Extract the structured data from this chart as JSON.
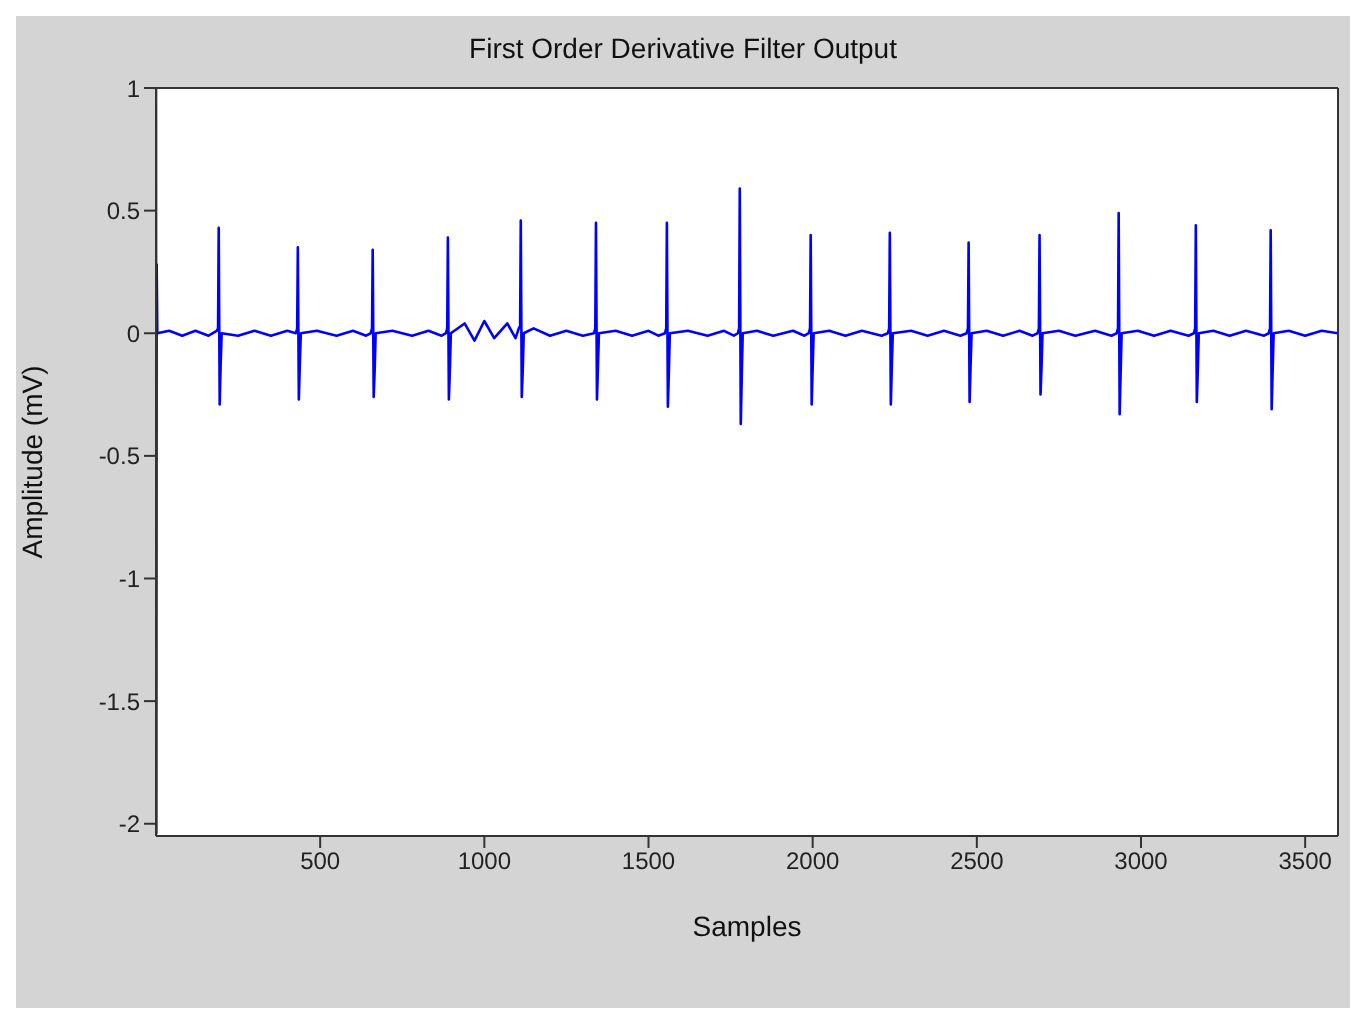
{
  "chart_data": {
    "type": "line",
    "title": "First Order Derivative Filter Output",
    "xlabel": "Samples",
    "ylabel": "Amplitude (mV)",
    "xlim": [
      0,
      3600
    ],
    "xticks": [
      500,
      1000,
      1500,
      2000,
      2500,
      3000,
      3500
    ],
    "ylim": [
      -2.05,
      1
    ],
    "yticks": [
      -2,
      -1.5,
      -1,
      -0.5,
      0,
      0.5,
      1
    ],
    "marker": "none",
    "line_style": "solid",
    "series": [
      {
        "color": "#0000ff",
        "x": [
          0,
          1,
          2,
          4,
          40,
          80,
          120,
          160,
          185,
          189,
          191,
          194,
          197,
          200,
          250,
          300,
          350,
          400,
          426,
          430,
          432,
          435,
          438,
          441,
          490,
          550,
          600,
          640,
          654,
          658,
          660,
          663,
          666,
          669,
          720,
          780,
          830,
          870,
          883,
          887,
          889,
          892,
          895,
          898,
          940,
          970,
          1000,
          1030,
          1070,
          1095,
          1105,
          1109,
          1111,
          1114,
          1117,
          1120,
          1150,
          1200,
          1250,
          1300,
          1334,
          1338,
          1340,
          1343,
          1346,
          1349,
          1400,
          1450,
          1500,
          1530,
          1550,
          1554,
          1556,
          1559,
          1562,
          1565,
          1620,
          1680,
          1730,
          1760,
          1772,
          1776,
          1778,
          1781,
          1784,
          1787,
          1830,
          1880,
          1940,
          1975,
          1988,
          1992,
          1994,
          1997,
          2000,
          2003,
          2050,
          2100,
          2150,
          2210,
          2229,
          2233,
          2235,
          2238,
          2241,
          2244,
          2300,
          2350,
          2400,
          2450,
          2469,
          2473,
          2475,
          2478,
          2481,
          2484,
          2530,
          2580,
          2630,
          2670,
          2685,
          2689,
          2691,
          2694,
          2697,
          2700,
          2750,
          2800,
          2860,
          2910,
          2926,
          2930,
          2932,
          2935,
          2938,
          2941,
          2990,
          3040,
          3090,
          3145,
          3161,
          3165,
          3167,
          3170,
          3173,
          3176,
          3220,
          3270,
          3320,
          3375,
          3389,
          3393,
          3395,
          3398,
          3401,
          3404,
          3450,
          3500,
          3550,
          3600
        ],
        "values": [
          1,
          -2.04,
          0.28,
          0,
          0.01,
          -0.01,
          0.01,
          -0.01,
          0.01,
          0.02,
          0.43,
          -0.29,
          -0.12,
          0,
          -0.01,
          0.01,
          -0.01,
          0.01,
          0,
          0.02,
          0.35,
          -0.27,
          -0.13,
          0,
          0.01,
          -0.01,
          0.01,
          -0.01,
          0,
          0.02,
          0.34,
          -0.26,
          -0.15,
          0,
          0.01,
          -0.01,
          0.01,
          -0.01,
          0,
          0.02,
          0.39,
          -0.27,
          -0.15,
          0,
          0.04,
          -0.03,
          0.05,
          -0.02,
          0.04,
          -0.02,
          0.02,
          0.03,
          0.46,
          -0.26,
          -0.15,
          0,
          0.02,
          -0.01,
          0.01,
          -0.01,
          0,
          0.02,
          0.45,
          -0.27,
          -0.14,
          0,
          0.01,
          -0.01,
          0.01,
          -0.01,
          0,
          0.02,
          0.45,
          -0.3,
          -0.16,
          0,
          0.01,
          -0.01,
          0.01,
          -0.01,
          0,
          0.02,
          0.59,
          -0.37,
          -0.18,
          0,
          0.01,
          -0.01,
          0.01,
          -0.01,
          0,
          0.02,
          0.4,
          -0.29,
          -0.14,
          0,
          0.01,
          -0.01,
          0.01,
          -0.01,
          0,
          0.02,
          0.41,
          -0.29,
          -0.14,
          0,
          0.01,
          -0.01,
          0.01,
          -0.01,
          0,
          0.02,
          0.37,
          -0.28,
          -0.13,
          0,
          0.01,
          -0.01,
          0.01,
          -0.01,
          0,
          0.02,
          0.4,
          -0.25,
          -0.14,
          0,
          0.01,
          -0.01,
          0.01,
          -0.01,
          0,
          0.02,
          0.49,
          -0.33,
          -0.16,
          0,
          0.01,
          -0.01,
          0.01,
          -0.01,
          0,
          0.02,
          0.44,
          -0.28,
          -0.15,
          0,
          0.01,
          -0.01,
          0.01,
          -0.01,
          0,
          0.02,
          0.42,
          -0.31,
          -0.15,
          0,
          0.01,
          -0.01,
          0.01,
          0
        ]
      }
    ]
  }
}
